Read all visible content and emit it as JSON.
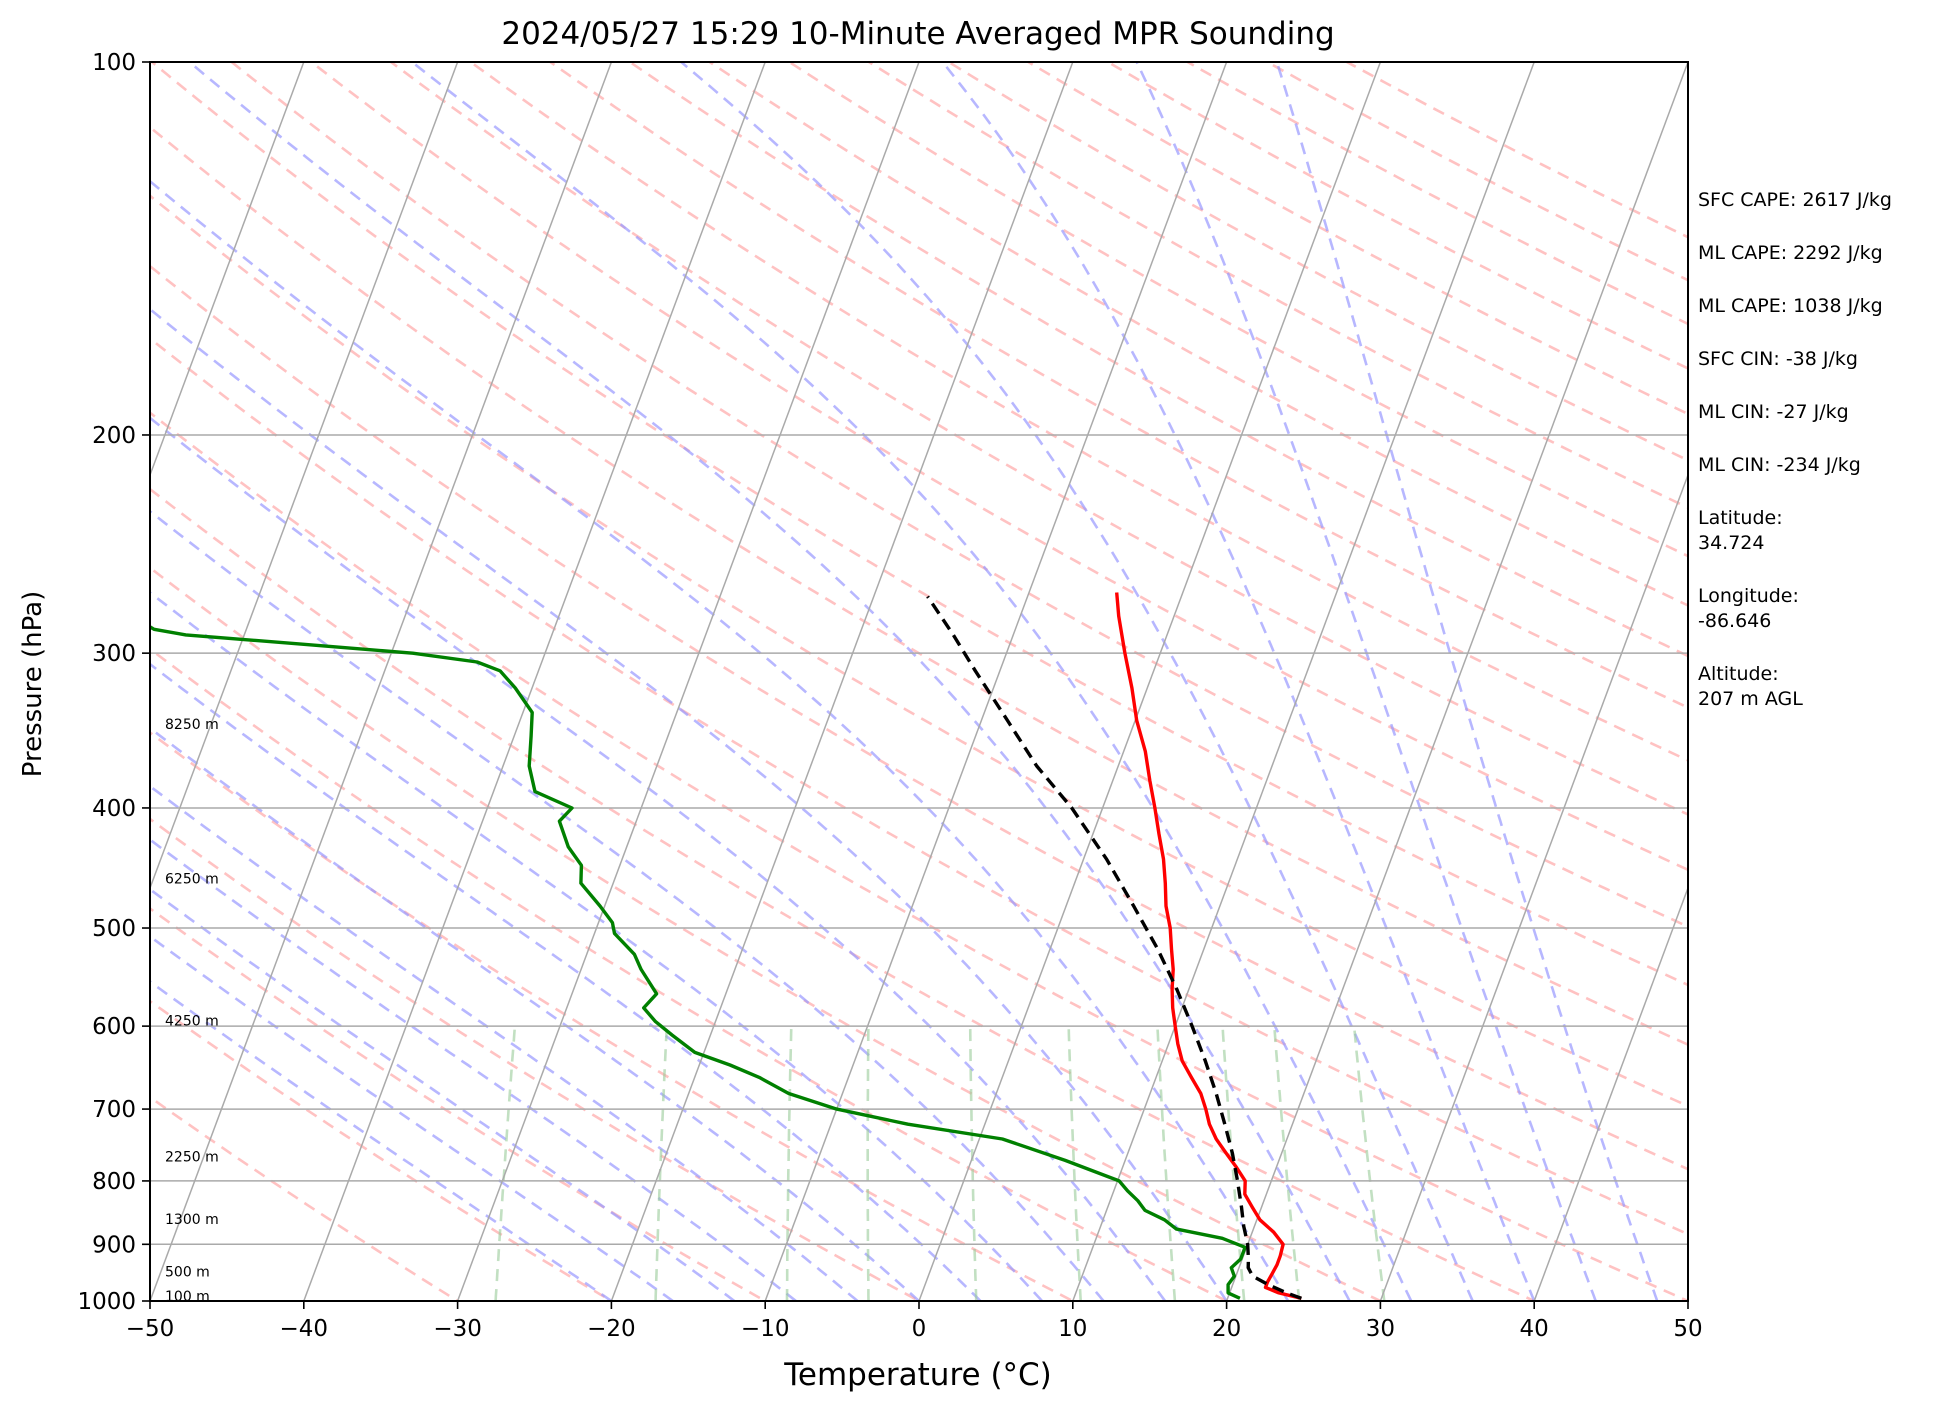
{
  "chart_data": {
    "type": "line",
    "subtype": "skew-T log-P diagram",
    "title": "2024/05/27 15:29 10-Minute Averaged MPR Sounding",
    "xlabel": "Temperature (°C)",
    "ylabel": "Pressure (hPa)",
    "xlim": [
      -50,
      50
    ],
    "ylim": [
      1000,
      100
    ],
    "y_scale": "log",
    "grid": true,
    "x_ticks": [
      -50,
      -40,
      -30,
      -20,
      -10,
      0,
      10,
      20,
      30,
      40,
      50
    ],
    "x_tick_labels": [
      "−50",
      "−40",
      "−30",
      "−20",
      "−10",
      "0",
      "10",
      "20",
      "30",
      "40",
      "50"
    ],
    "y_ticks": [
      1000,
      900,
      800,
      700,
      600,
      500,
      400,
      300,
      200,
      100
    ],
    "y_tick_labels": [
      "1000",
      "900",
      "800",
      "700",
      "600",
      "500",
      "400",
      "300",
      "200",
      "100"
    ],
    "height_labels": [
      {
        "label": "100 m",
        "p": 993
      },
      {
        "label": "500 m",
        "p": 948
      },
      {
        "label": "1300 m",
        "p": 860
      },
      {
        "label": "2250 m",
        "p": 766
      },
      {
        "label": "4250 m",
        "p": 595
      },
      {
        "label": "6250 m",
        "p": 457
      },
      {
        "label": "8250 m",
        "p": 343
      }
    ],
    "series": [
      {
        "key": "temperature",
        "color": "#ff0000",
        "style": "solid",
        "points": [
          [
            995,
            24.8
          ],
          [
            985,
            23.2
          ],
          [
            975,
            22.2
          ],
          [
            965,
            22.2
          ],
          [
            950,
            22.3
          ],
          [
            935,
            22.4
          ],
          [
            920,
            22.4
          ],
          [
            900,
            22.3
          ],
          [
            880,
            21.4
          ],
          [
            860,
            20.2
          ],
          [
            840,
            19.4
          ],
          [
            820,
            18.6
          ],
          [
            800,
            18.3
          ],
          [
            780,
            17.4
          ],
          [
            760,
            16.4
          ],
          [
            740,
            15.4
          ],
          [
            720,
            14.6
          ],
          [
            700,
            14.0
          ],
          [
            680,
            13.3
          ],
          [
            660,
            12.3
          ],
          [
            640,
            11.3
          ],
          [
            620,
            10.6
          ],
          [
            600,
            10.0
          ],
          [
            580,
            9.4
          ],
          [
            560,
            8.9
          ],
          [
            540,
            8.5
          ],
          [
            520,
            7.9
          ],
          [
            500,
            7.3
          ],
          [
            480,
            6.5
          ],
          [
            460,
            5.9
          ],
          [
            440,
            5.2
          ],
          [
            420,
            4.3
          ],
          [
            400,
            3.4
          ],
          [
            380,
            2.4
          ],
          [
            360,
            1.4
          ],
          [
            340,
            0.1
          ],
          [
            320,
            -1.0
          ],
          [
            300,
            -2.3
          ],
          [
            280,
            -3.6
          ],
          [
            268,
            -4.3
          ]
        ]
      },
      {
        "key": "dewpoint",
        "color": "#008000",
        "style": "solid",
        "points": [
          [
            995,
            20.8
          ],
          [
            985,
            19.9
          ],
          [
            970,
            19.7
          ],
          [
            955,
            19.9
          ],
          [
            940,
            19.5
          ],
          [
            925,
            19.9
          ],
          [
            905,
            19.9
          ],
          [
            890,
            18.2
          ],
          [
            875,
            15.0
          ],
          [
            860,
            14.0
          ],
          [
            845,
            12.5
          ],
          [
            830,
            11.8
          ],
          [
            815,
            10.9
          ],
          [
            800,
            10.1
          ],
          [
            770,
            6.1
          ],
          [
            740,
            1.5
          ],
          [
            720,
            -5.0
          ],
          [
            700,
            -10.0
          ],
          [
            680,
            -13.5
          ],
          [
            660,
            -15.8
          ],
          [
            645,
            -18.0
          ],
          [
            630,
            -20.6
          ],
          [
            610,
            -22.5
          ],
          [
            595,
            -23.9
          ],
          [
            580,
            -25.0
          ],
          [
            565,
            -24.5
          ],
          [
            540,
            -26.1
          ],
          [
            525,
            -26.9
          ],
          [
            505,
            -28.7
          ],
          [
            495,
            -29.1
          ],
          [
            480,
            -30.3
          ],
          [
            460,
            -32.1
          ],
          [
            445,
            -32.5
          ],
          [
            430,
            -33.8
          ],
          [
            410,
            -35.0
          ],
          [
            400,
            -34.5
          ],
          [
            388,
            -37.3
          ],
          [
            370,
            -38.3
          ],
          [
            350,
            -38.9
          ],
          [
            335,
            -39.4
          ],
          [
            320,
            -41.1
          ],
          [
            310,
            -42.5
          ],
          [
            305,
            -44.2
          ],
          [
            300,
            -48.6
          ],
          [
            295,
            -56.1
          ],
          [
            290,
            -63.8
          ],
          [
            287,
            -66.0
          ],
          [
            285,
            -66.5
          ]
        ]
      },
      {
        "key": "parcel",
        "color": "#000000",
        "style": "dashed",
        "points": [
          [
            995,
            24.8
          ],
          [
            985,
            23.7
          ],
          [
            970,
            22.3
          ],
          [
            955,
            21.1
          ],
          [
            940,
            20.6
          ],
          [
            925,
            20.4
          ],
          [
            900,
            20.0
          ],
          [
            870,
            19.3
          ],
          [
            840,
            18.7
          ],
          [
            800,
            17.8
          ],
          [
            760,
            16.8
          ],
          [
            720,
            15.6
          ],
          [
            680,
            14.3
          ],
          [
            640,
            12.8
          ],
          [
            600,
            11.1
          ],
          [
            560,
            9.2
          ],
          [
            520,
            7.0
          ],
          [
            480,
            4.4
          ],
          [
            440,
            1.5
          ],
          [
            400,
            -2.0
          ],
          [
            370,
            -5.3
          ],
          [
            340,
            -8.3
          ],
          [
            310,
            -11.6
          ],
          [
            290,
            -13.9
          ],
          [
            270,
            -16.5
          ]
        ]
      }
    ],
    "colors": {
      "isotherm": "#aaaaaa",
      "dry_adiabat": "#ff9999",
      "moist_adiabat": "#9999ff",
      "mixing_ratio": "#99cc99",
      "isobar": "#aaaaaa"
    }
  },
  "stats": [
    "SFC CAPE: 2617 J/kg",
    "ML CAPE: 2292 J/kg",
    "ML CAPE: 1038 J/kg",
    "SFC CIN: -38 J/kg",
    "ML CIN: -27 J/kg",
    "ML CIN: -234 J/kg",
    "Latitude:\n34.724",
    "Longitude:\n-86.646",
    "Altitude:\n207 m AGL"
  ]
}
